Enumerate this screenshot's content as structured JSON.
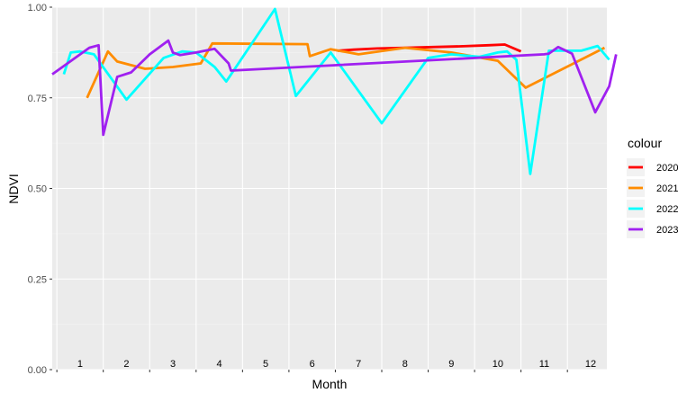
{
  "chart_data": {
    "type": "line",
    "title": "",
    "xlabel": "Month",
    "ylabel": "NDVI",
    "ylim": [
      0,
      1
    ],
    "xlim": [
      0.4,
      12.35
    ],
    "y_ticks": [
      0,
      0.25,
      0.5,
      0.75,
      1.0
    ],
    "y_tick_labels": [
      "0.00",
      "0.25",
      "0.50",
      "0.75",
      "1.00"
    ],
    "month_labels": [
      "1",
      "2",
      "3",
      "4",
      "5",
      "6",
      "7",
      "8",
      "9",
      "10",
      "11",
      "12"
    ],
    "grid": true,
    "background": "#EBEBEB",
    "legend": {
      "title": "colour",
      "position": "right"
    },
    "series": [
      {
        "name": "2020",
        "color": "#FF0000",
        "x": [
          6.55,
          6.9,
          7.4,
          8.0,
          8.6,
          9.2,
          9.8,
          10.15,
          10.5
        ],
        "y": [
          0.88,
          0.883,
          0.886,
          0.888,
          0.89,
          0.892,
          0.895,
          0.897,
          0.878
        ]
      },
      {
        "name": "2021",
        "color": "#FF8C00",
        "x": [
          1.15,
          1.6,
          1.8,
          2.4,
          3.0,
          3.6,
          3.85,
          5.9,
          5.95,
          6.4,
          7.0,
          8.0,
          9.0,
          10.0,
          10.6,
          12.3
        ],
        "y": [
          0.75,
          0.878,
          0.85,
          0.83,
          0.835,
          0.845,
          0.9,
          0.898,
          0.865,
          0.884,
          0.87,
          0.888,
          0.875,
          0.852,
          0.778,
          0.888
        ]
      },
      {
        "name": "2022",
        "color": "#00FFFF",
        "x": [
          0.65,
          0.8,
          1.0,
          1.3,
          2.0,
          2.8,
          3.2,
          3.5,
          3.9,
          4.15,
          5.2,
          5.65,
          6.4,
          7.5,
          8.5,
          9.0,
          9.6,
          10.0,
          10.2,
          10.4,
          10.7,
          11.1,
          11.8,
          12.15,
          12.4
        ],
        "y": [
          0.815,
          0.875,
          0.878,
          0.87,
          0.745,
          0.86,
          0.878,
          0.875,
          0.835,
          0.795,
          0.995,
          0.755,
          0.875,
          0.68,
          0.86,
          0.87,
          0.863,
          0.875,
          0.878,
          0.855,
          0.54,
          0.88,
          0.88,
          0.893,
          0.855
        ]
      },
      {
        "name": "2023",
        "color": "#A020F0",
        "x": [
          0.4,
          1.2,
          1.4,
          1.5,
          1.8,
          2.1,
          2.5,
          2.9,
          3.0,
          3.15,
          3.5,
          3.9,
          4.2,
          4.25,
          11.0,
          11.1,
          11.3,
          11.6,
          12.1,
          12.4,
          12.55
        ],
        "y": [
          0.815,
          0.888,
          0.895,
          0.648,
          0.808,
          0.82,
          0.87,
          0.908,
          0.875,
          0.868,
          0.875,
          0.885,
          0.845,
          0.825,
          0.87,
          0.872,
          0.89,
          0.872,
          0.71,
          0.782,
          0.87
        ]
      }
    ]
  }
}
